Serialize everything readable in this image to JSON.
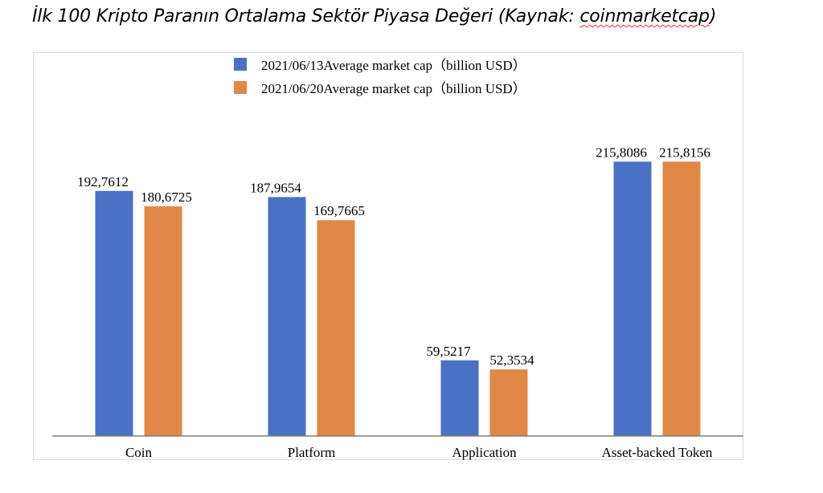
{
  "title_parts": {
    "prefix": "İlk 100 Kripto Paranın Ortalama Sektör Piyasa Değeri (Kaynak: ",
    "source": "coinmarketcap",
    "suffix": ")"
  },
  "chart_data": {
    "type": "bar",
    "title": "İlk 100 Kripto Paranın Ortalama Sektör Piyasa Değeri (Kaynak: coinmarketcap)",
    "categories": [
      "Coin",
      "Platform",
      "Application",
      "Asset-backed Token"
    ],
    "series": [
      {
        "name": "2021/06/13Average market cap（billion USD）",
        "values": [
          192.7612,
          187.9654,
          59.5217,
          215.8086
        ],
        "labels": [
          "192,7612",
          "187,9654",
          "59,5217",
          "215,8086"
        ],
        "color": "#4a71c4"
      },
      {
        "name": "2021/06/20Average market cap（billion USD）",
        "values": [
          180.6725,
          169.7665,
          52.3534,
          215.8156
        ],
        "labels": [
          "180,6725",
          "169,7665",
          "52,3534",
          "215,8156"
        ],
        "color": "#e08845"
      }
    ],
    "xlabel": "",
    "ylabel": "",
    "ylim": [
      0,
      240
    ],
    "grid": false,
    "legend": "top-center"
  }
}
